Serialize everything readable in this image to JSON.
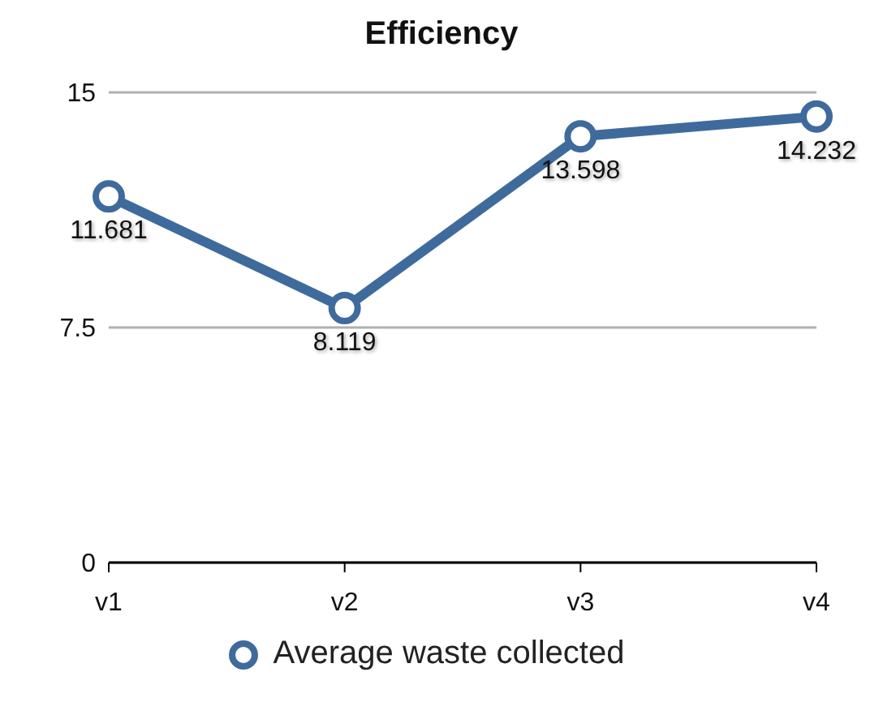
{
  "chart_data": {
    "type": "line",
    "title": "Efficiency",
    "categories": [
      "v1",
      "v2",
      "v3",
      "v4"
    ],
    "series": [
      {
        "name": "Average waste collected",
        "color": "#3f6b9c",
        "values": [
          11.681,
          8.119,
          13.598,
          14.232
        ]
      }
    ],
    "ylim": [
      0,
      15
    ],
    "yticks": [
      0,
      7.5,
      15
    ],
    "grid": "y",
    "legend": "bottom",
    "marker": "circle",
    "line_style": "solid",
    "data_labels": true
  }
}
